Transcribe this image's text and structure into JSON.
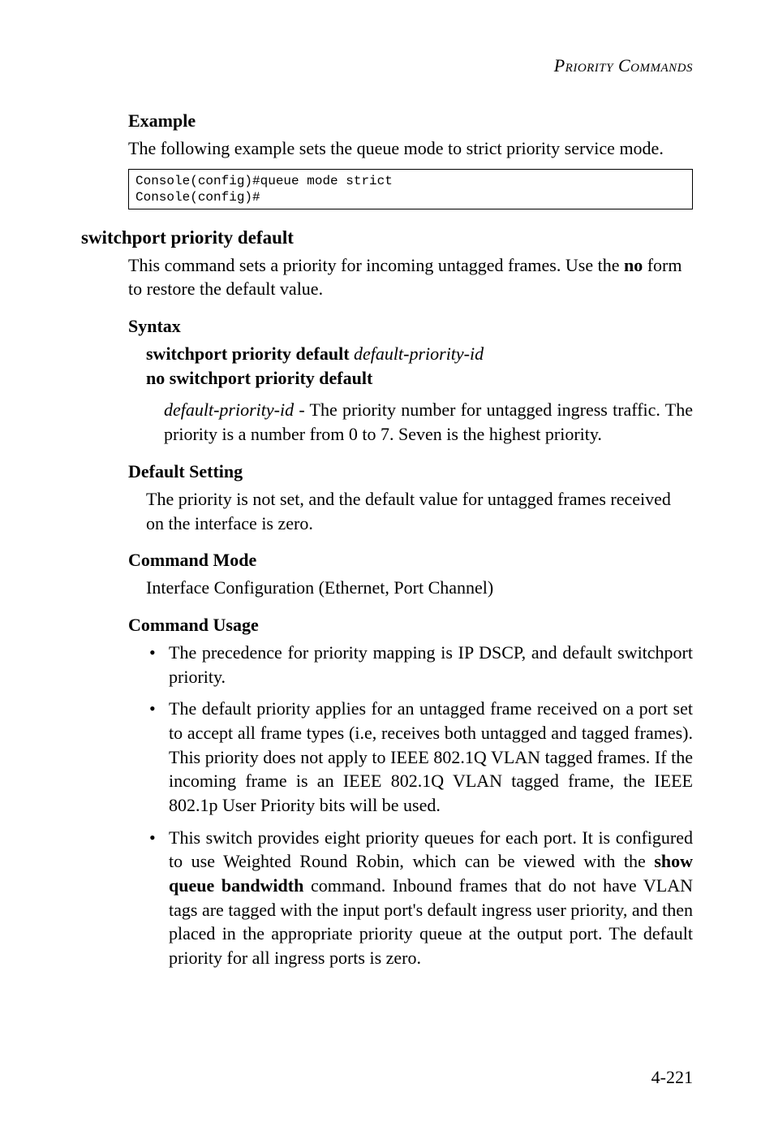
{
  "runningHead": "Priority Commands",
  "example": {
    "heading": "Example",
    "intro": "The following example sets the queue mode to strict priority service mode.",
    "code": "Console(config)#queue mode strict\nConsole(config)#"
  },
  "cmd": {
    "title": "switchport priority default",
    "desc_pre": "This command sets a priority for incoming untagged frames. Use the ",
    "desc_bold": "no",
    "desc_post": " form to restore the default value.",
    "syntax": {
      "heading": "Syntax",
      "line1_bold": "switchport priority default ",
      "line1_ital": "default-priority-id",
      "line2_bold": "no switchport priority default",
      "param_ital": "default-priority-id",
      "param_rest": " - The priority number for untagged ingress traffic. The priority is a number from 0 to 7. Seven is the highest priority."
    },
    "defaultSetting": {
      "heading": "Default Setting",
      "body": "The priority is not set, and the default value for untagged frames received on the interface is zero."
    },
    "commandMode": {
      "heading": "Command Mode",
      "body": "Interface Configuration (Ethernet, Port Channel)"
    },
    "commandUsage": {
      "heading": "Command Usage",
      "bullets": [
        {
          "text_pre": "The precedence for priority mapping is IP DSCP, and default switchport priority."
        },
        {
          "text_pre": "The default priority applies for an untagged frame received on a port set to accept all frame types (i.e, receives both untagged and tagged frames). This priority does not apply to IEEE 802.1Q VLAN tagged frames. If the incoming frame is an IEEE 802.1Q VLAN tagged frame, the IEEE 802.1p User Priority bits will be used."
        },
        {
          "text_pre": "This switch provides eight priority queues for each port. It is configured to use Weighted Round Robin, which can be viewed with the ",
          "bold": "show queue bandwidth",
          "text_post": " command. Inbound frames that do not have VLAN tags are tagged with the input port's default ingress user priority, and then placed in the appropriate priority queue at the output port. The default priority for all ingress ports is zero."
        }
      ]
    }
  },
  "pageNumber": "4-221"
}
